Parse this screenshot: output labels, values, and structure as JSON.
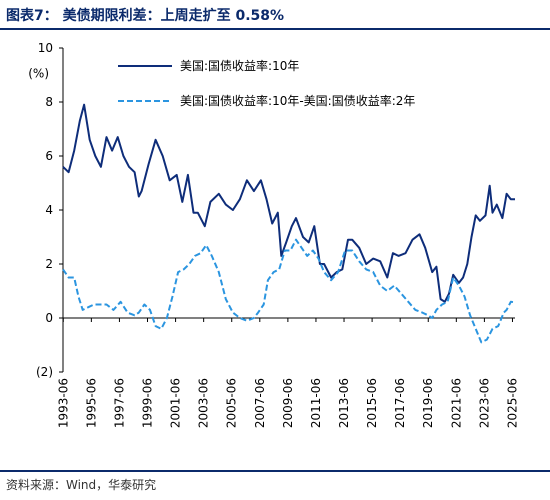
{
  "header": {
    "title": "图表7：  美债期限利差：上周走扩至 0.58%"
  },
  "footer": {
    "source": "资料来源：Wind，华泰研究"
  },
  "colors": {
    "accent": "#0b2a6b",
    "series1": "#0e2d7a",
    "series2": "#2b95e0"
  },
  "chart_data": {
    "type": "line",
    "ylabel": "(%)",
    "ylim": [
      -2,
      10
    ],
    "yticks": [
      -2,
      0,
      2,
      4,
      6,
      8,
      10
    ],
    "ytick_labels": [
      "(2)",
      "0",
      "2",
      "4",
      "6",
      "8",
      "10"
    ],
    "xlim": [
      1993.4,
      2025.6
    ],
    "xticks": [
      1993.42,
      1995.42,
      1997.42,
      1999.42,
      2001.42,
      2003.42,
      2005.42,
      2007.42,
      2009.42,
      2011.42,
      2013.42,
      2015.42,
      2017.42,
      2019.42,
      2021.42,
      2023.42,
      2025.42
    ],
    "xtick_labels": [
      "1993-06",
      "1995-06",
      "1997-06",
      "1999-06",
      "2001-06",
      "2003-06",
      "2005-06",
      "2007-06",
      "2009-06",
      "2011-06",
      "2013-06",
      "2015-06",
      "2017-06",
      "2019-06",
      "2021-06",
      "2023-06",
      "2025-06"
    ],
    "grid": false,
    "legend_position": "top-right",
    "series": [
      {
        "name": "美国:国债收益率:10年",
        "style": "solid",
        "x": [
          1993.4,
          1993.8,
          1994.2,
          1994.6,
          1994.9,
          1995.3,
          1995.7,
          1996.1,
          1996.5,
          1996.9,
          1997.3,
          1997.7,
          1998.1,
          1998.5,
          1998.8,
          1999.0,
          1999.5,
          2000.0,
          2000.5,
          2001.0,
          2001.5,
          2001.9,
          2002.3,
          2002.7,
          2003.0,
          2003.5,
          2003.9,
          2004.5,
          2005.0,
          2005.5,
          2006.0,
          2006.5,
          2007.0,
          2007.5,
          2007.9,
          2008.3,
          2008.7,
          2008.95,
          2009.3,
          2009.7,
          2010.0,
          2010.5,
          2010.9,
          2011.3,
          2011.7,
          2012.0,
          2012.5,
          2012.9,
          2013.3,
          2013.7,
          2014.0,
          2014.5,
          2015.0,
          2015.5,
          2016.0,
          2016.5,
          2016.9,
          2017.3,
          2017.8,
          2018.3,
          2018.8,
          2019.2,
          2019.7,
          2020.0,
          2020.3,
          2020.6,
          2020.9,
          2021.2,
          2021.6,
          2021.9,
          2022.2,
          2022.5,
          2022.8,
          2023.1,
          2023.5,
          2023.8,
          2024.0,
          2024.3,
          2024.7,
          2025.0,
          2025.3,
          2025.6
        ],
        "values": [
          5.6,
          5.4,
          6.2,
          7.3,
          7.9,
          6.6,
          6.0,
          5.6,
          6.7,
          6.2,
          6.7,
          6.0,
          5.6,
          5.4,
          4.5,
          4.7,
          5.7,
          6.6,
          6.0,
          5.1,
          5.3,
          4.3,
          5.3,
          3.9,
          3.9,
          3.4,
          4.3,
          4.6,
          4.2,
          4.0,
          4.4,
          5.1,
          4.7,
          5.1,
          4.4,
          3.5,
          3.9,
          2.3,
          2.8,
          3.4,
          3.7,
          3.0,
          2.8,
          3.4,
          2.0,
          2.0,
          1.5,
          1.7,
          1.8,
          2.9,
          2.9,
          2.6,
          2.0,
          2.2,
          2.1,
          1.5,
          2.4,
          2.3,
          2.4,
          2.9,
          3.1,
          2.6,
          1.7,
          1.9,
          0.7,
          0.6,
          0.9,
          1.6,
          1.3,
          1.5,
          2.0,
          3.0,
          3.8,
          3.6,
          3.8,
          4.9,
          3.9,
          4.2,
          3.7,
          4.6,
          4.4,
          4.4
        ]
      },
      {
        "name": "美国:国债收益率:10年-美国:国债收益率:2年",
        "style": "dashed",
        "x": [
          1993.4,
          1993.8,
          1994.2,
          1994.5,
          1994.8,
          1995.2,
          1995.6,
          1996.0,
          1996.5,
          1997.0,
          1997.5,
          1998.0,
          1998.5,
          1998.8,
          1999.2,
          1999.6,
          2000.0,
          2000.4,
          2000.8,
          2001.2,
          2001.6,
          2002.0,
          2002.4,
          2002.8,
          2003.2,
          2003.6,
          2004.0,
          2004.5,
          2005.0,
          2005.5,
          2006.0,
          2006.5,
          2007.0,
          2007.3,
          2007.7,
          2008.0,
          2008.4,
          2008.8,
          2009.2,
          2009.6,
          2010.0,
          2010.4,
          2010.8,
          2011.2,
          2011.6,
          2012.0,
          2012.5,
          2013.0,
          2013.5,
          2014.0,
          2014.5,
          2015.0,
          2015.5,
          2016.0,
          2016.5,
          2017.0,
          2017.5,
          2018.0,
          2018.5,
          2019.0,
          2019.4,
          2019.7,
          2020.0,
          2020.4,
          2020.8,
          2021.2,
          2021.6,
          2022.0,
          2022.4,
          2022.8,
          2023.2,
          2023.6,
          2024.0,
          2024.4,
          2024.8,
          2025.0,
          2025.3,
          2025.6
        ],
        "values": [
          1.8,
          1.5,
          1.5,
          0.8,
          0.3,
          0.4,
          0.5,
          0.5,
          0.5,
          0.3,
          0.6,
          0.2,
          0.1,
          0.2,
          0.5,
          0.3,
          -0.3,
          -0.4,
          0.0,
          0.8,
          1.7,
          1.8,
          2.0,
          2.3,
          2.4,
          2.7,
          2.3,
          1.7,
          0.7,
          0.2,
          0.0,
          -0.1,
          0.0,
          0.2,
          0.5,
          1.4,
          1.7,
          1.8,
          2.5,
          2.5,
          2.9,
          2.6,
          2.3,
          2.5,
          2.2,
          1.7,
          1.4,
          1.7,
          2.5,
          2.5,
          2.1,
          1.8,
          1.7,
          1.2,
          1.0,
          1.2,
          0.9,
          0.6,
          0.3,
          0.2,
          0.1,
          0.0,
          0.3,
          0.5,
          0.6,
          1.5,
          1.2,
          0.8,
          0.1,
          -0.4,
          -0.9,
          -0.8,
          -0.4,
          -0.3,
          0.2,
          0.3,
          0.6,
          0.58
        ]
      }
    ]
  }
}
